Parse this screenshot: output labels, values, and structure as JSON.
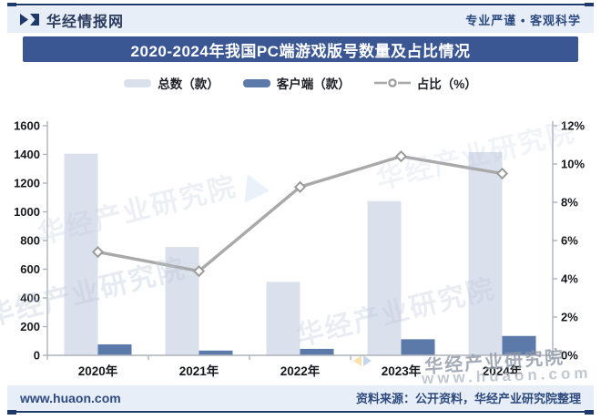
{
  "header": {
    "brand": "华经情报网",
    "slogan": "专业严谨 • 客观科学"
  },
  "title": "2020-2024年我国PC端游戏版号数量及占比情况",
  "footer": {
    "site": "www.huaon.com",
    "source": "资料来源：公开资料，华经产业研究院整理"
  },
  "watermark": {
    "org": "华经产业研究院",
    "site": "www.huaon.com"
  },
  "colors": {
    "navy": "#1d3a6b",
    "strip_bg": "#e8eef7",
    "banner_bg": "#3a5793",
    "banner_text": "#ffffff",
    "axis_text": "#15181d",
    "axis_line": "#aeb3bb"
  },
  "chart_data": {
    "type": "bar+line",
    "title": "2020-2024年我国PC端游戏版号数量及占比情况",
    "categories": [
      "2020年",
      "2021年",
      "2022年",
      "2023年",
      "2024年"
    ],
    "series": [
      {
        "name": "总数（款）",
        "type": "bar",
        "axis": "left",
        "color": "#dbe1ec",
        "values": [
          1405,
          755,
          512,
          1075,
          1416
        ]
      },
      {
        "name": "客户端（款）",
        "type": "bar",
        "axis": "left",
        "color": "#5b79a9",
        "values": [
          76,
          33,
          45,
          112,
          135
        ]
      },
      {
        "name": "占比（%）",
        "type": "line",
        "axis": "right",
        "color": "#a9a9a9",
        "marker": "diamond",
        "marker_fill": "#ffffff",
        "marker_stroke": "#9b9b9b",
        "values": [
          5.4,
          4.4,
          8.8,
          10.4,
          9.5
        ]
      }
    ],
    "left_axis": {
      "min": 0,
      "max": 1600,
      "step": 200
    },
    "right_axis": {
      "min": 0,
      "max": 12,
      "step": 2,
      "suffix": "%"
    },
    "grid": false,
    "legend_position": "top"
  }
}
